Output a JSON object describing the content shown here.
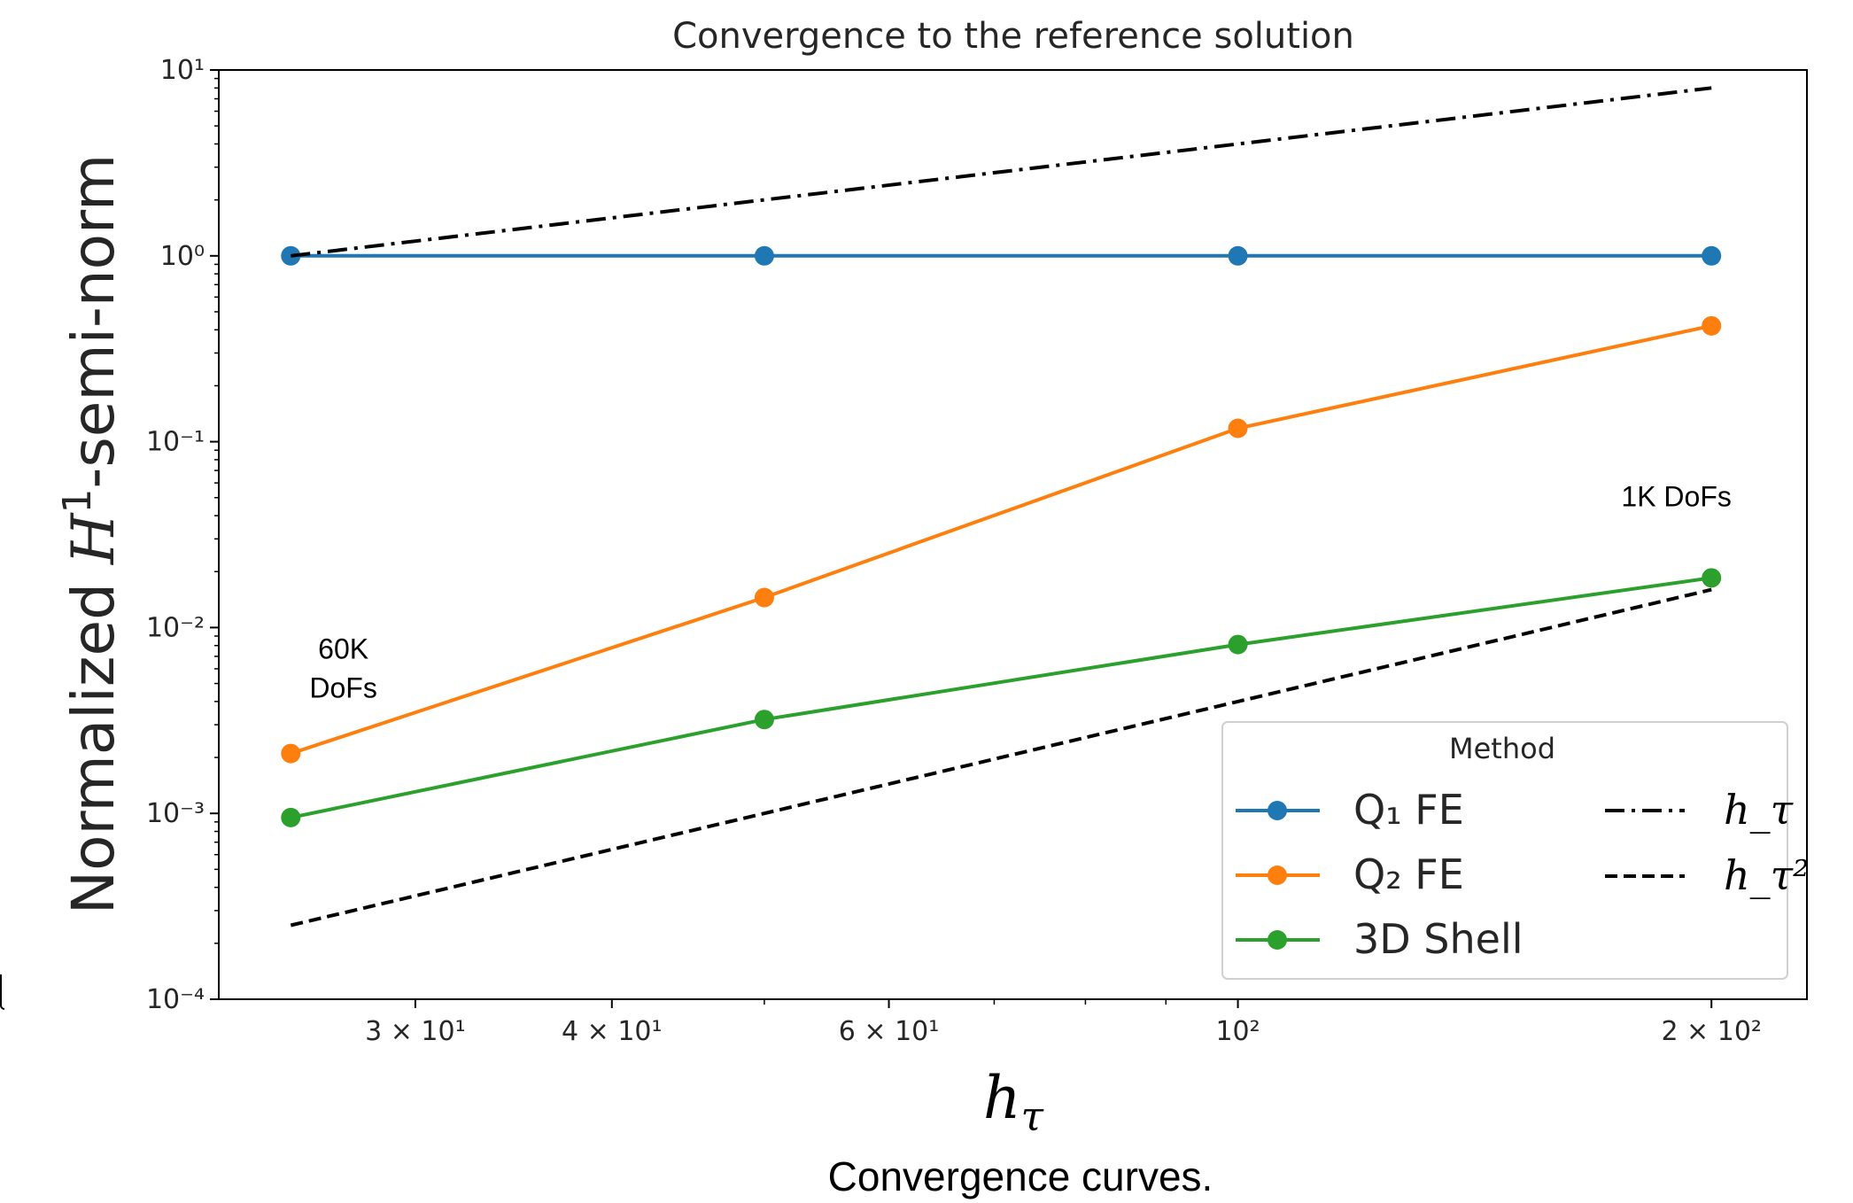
{
  "chart_data": {
    "type": "line",
    "title": "Convergence to the reference solution",
    "xlabel": "h_τ",
    "ylabel": "Normalized H^1-semi-norm",
    "caption": "Convergence curves.",
    "x_scale": "log",
    "y_scale": "log",
    "xlim": [
      22.5,
      230
    ],
    "ylim": [
      0.0001,
      10
    ],
    "x": [
      25,
      50,
      100,
      200
    ],
    "x_ticks": [
      {
        "value": 30,
        "label": "3 × 10¹"
      },
      {
        "value": 40,
        "label": "4 × 10¹"
      },
      {
        "value": 60,
        "label": "6 × 10¹"
      },
      {
        "value": 100,
        "label": "10²"
      },
      {
        "value": 200,
        "label": "2 × 10²"
      }
    ],
    "y_ticks": [
      {
        "value": 0.0001,
        "label": "10⁻⁴"
      },
      {
        "value": 0.001,
        "label": "10⁻³"
      },
      {
        "value": 0.01,
        "label": "10⁻²"
      },
      {
        "value": 0.1,
        "label": "10⁻¹"
      },
      {
        "value": 1,
        "label": "10⁰"
      },
      {
        "value": 10,
        "label": "10¹"
      }
    ],
    "series": [
      {
        "name": "Q₁ FE",
        "color": "#1f77b4",
        "style": "solid-marker",
        "values": [
          1.0,
          1.0,
          1.0,
          1.0
        ]
      },
      {
        "name": "Q₂ FE",
        "color": "#ff7f0e",
        "style": "solid-marker",
        "values": [
          0.0021,
          0.0145,
          0.118,
          0.42
        ]
      },
      {
        "name": "3D Shell",
        "color": "#2ca02c",
        "style": "solid-marker",
        "values": [
          0.00095,
          0.0032,
          0.0081,
          0.0185
        ]
      },
      {
        "name": "h_τ",
        "color": "#000000",
        "style": "dashdot",
        "values": [
          1.0,
          2.0,
          4.0,
          8.0
        ]
      },
      {
        "name": "h_τ²",
        "color": "#000000",
        "style": "dashed",
        "values": [
          0.00025,
          0.001,
          0.004,
          0.016
        ]
      }
    ],
    "legend": {
      "title": "Method",
      "position": "lower-right"
    },
    "annotations": [
      {
        "lines": [
          "60K",
          "DoFs"
        ],
        "x": 27,
        "y": 0.0068
      },
      {
        "lines": [
          "1K DoFs"
        ],
        "x": 190,
        "y": 0.045
      }
    ],
    "grid": false
  }
}
